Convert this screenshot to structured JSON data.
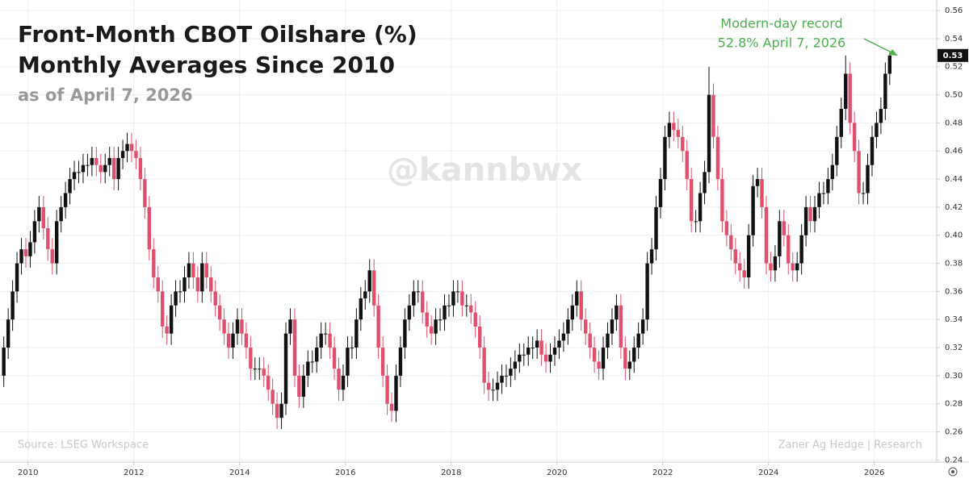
{
  "chart_data": {
    "type": "candlestick",
    "title_lines": [
      "Front-Month CBOT Oilshare (%)",
      "Monthly Averages Since 2010"
    ],
    "subtitle": "as of April 7, 2026",
    "watermark": "@kannbwx",
    "source": "Source: LSEG Workspace",
    "credit": "Zaner Ag Hedge | Research",
    "annotation": [
      "Modern-day record",
      "52.8% April 7, 2026"
    ],
    "last_label": "0.53",
    "up_color": "#111111",
    "down_color": "#e0506c",
    "annotation_color": "#4caf50",
    "xlim": [
      2009.47,
      2027.18
    ],
    "xticks": [
      2010,
      2012,
      2014,
      2016,
      2018,
      2020,
      2022,
      2024,
      2026
    ],
    "ylim": [
      0.2385,
      0.5675
    ],
    "yticks": [
      0.24,
      0.26,
      0.28,
      {
        "value": 0.3,
        "label": "0.30"
      },
      0.32,
      0.34,
      0.36,
      0.38,
      {
        "value": 0.4,
        "label": "0.40"
      },
      0.42,
      0.44,
      0.46,
      0.48,
      {
        "value": 0.5,
        "label": "0.50"
      },
      0.52,
      0.54,
      0.56
    ],
    "x": [
      "2009-07",
      "2009-08",
      "2009-09",
      "2009-10",
      "2009-11",
      "2009-12",
      "2010-01",
      "2010-02",
      "2010-03",
      "2010-04",
      "2010-05",
      "2010-06",
      "2010-07",
      "2010-08",
      "2010-09",
      "2010-10",
      "2010-11",
      "2010-12",
      "2011-01",
      "2011-02",
      "2011-03",
      "2011-04",
      "2011-05",
      "2011-06",
      "2011-07",
      "2011-08",
      "2011-09",
      "2011-10",
      "2011-11",
      "2011-12",
      "2012-01",
      "2012-02",
      "2012-03",
      "2012-04",
      "2012-05",
      "2012-06",
      "2012-07",
      "2012-08",
      "2012-09",
      "2012-10",
      "2012-11",
      "2012-12",
      "2013-01",
      "2013-02",
      "2013-03",
      "2013-04",
      "2013-05",
      "2013-06",
      "2013-07",
      "2013-08",
      "2013-09",
      "2013-10",
      "2013-11",
      "2013-12",
      "2014-01",
      "2014-02",
      "2014-03",
      "2014-04",
      "2014-05",
      "2014-06",
      "2014-07",
      "2014-08",
      "2014-09",
      "2014-10",
      "2014-11",
      "2014-12",
      "2015-01",
      "2015-02",
      "2015-03",
      "2015-04",
      "2015-05",
      "2015-06",
      "2015-07",
      "2015-08",
      "2015-09",
      "2015-10",
      "2015-11",
      "2015-12",
      "2016-01",
      "2016-02",
      "2016-03",
      "2016-04",
      "2016-05",
      "2016-06",
      "2016-07",
      "2016-08",
      "2016-09",
      "2016-10",
      "2016-11",
      "2016-12",
      "2017-01",
      "2017-02",
      "2017-03",
      "2017-04",
      "2017-05",
      "2017-06",
      "2017-07",
      "2017-08",
      "2017-09",
      "2017-10",
      "2017-11",
      "2017-12",
      "2018-01",
      "2018-02",
      "2018-03",
      "2018-04",
      "2018-05",
      "2018-06",
      "2018-07",
      "2018-08",
      "2018-09",
      "2018-10",
      "2018-11",
      "2018-12",
      "2019-01",
      "2019-02",
      "2019-03",
      "2019-04",
      "2019-05",
      "2019-06",
      "2019-07",
      "2019-08",
      "2019-09",
      "2019-10",
      "2019-11",
      "2019-12",
      "2020-01",
      "2020-02",
      "2020-03",
      "2020-04",
      "2020-05",
      "2020-06",
      "2020-07",
      "2020-08",
      "2020-09",
      "2020-10",
      "2020-11",
      "2020-12",
      "2021-01",
      "2021-02",
      "2021-03",
      "2021-04",
      "2021-05",
      "2021-06",
      "2021-07",
      "2021-08",
      "2021-09",
      "2021-10",
      "2021-11",
      "2021-12",
      "2022-01",
      "2022-02",
      "2022-03",
      "2022-04",
      "2022-05",
      "2022-06",
      "2022-07",
      "2022-08",
      "2022-09",
      "2022-10",
      "2022-11",
      "2022-12",
      "2023-01",
      "2023-02",
      "2023-03",
      "2023-04",
      "2023-05",
      "2023-06",
      "2023-07",
      "2023-08",
      "2023-09",
      "2023-10",
      "2023-11",
      "2023-12",
      "2024-01",
      "2024-02",
      "2024-03",
      "2024-04",
      "2024-05",
      "2024-06",
      "2024-07",
      "2024-08",
      "2024-09",
      "2024-10",
      "2024-11",
      "2024-12",
      "2025-01",
      "2025-02",
      "2025-03",
      "2025-04",
      "2025-05",
      "2025-06",
      "2025-07",
      "2025-08",
      "2025-09",
      "2025-10",
      "2025-11",
      "2025-12",
      "2026-01",
      "2026-02",
      "2026-03",
      "2026-04"
    ],
    "open": [
      0.3,
      0.32,
      0.34,
      0.36,
      0.38,
      0.39,
      0.385,
      0.395,
      0.41,
      0.42,
      0.405,
      0.39,
      0.38,
      0.41,
      0.42,
      0.43,
      0.44,
      0.445,
      0.445,
      0.45,
      0.45,
      0.455,
      0.45,
      0.445,
      0.45,
      0.455,
      0.44,
      0.455,
      0.46,
      0.465,
      0.46,
      0.455,
      0.44,
      0.42,
      0.39,
      0.37,
      0.36,
      0.335,
      0.33,
      0.35,
      0.36,
      0.36,
      0.37,
      0.38,
      0.37,
      0.36,
      0.38,
      0.37,
      0.36,
      0.35,
      0.34,
      0.33,
      0.32,
      0.33,
      0.34,
      0.33,
      0.32,
      0.305,
      0.305,
      0.305,
      0.3,
      0.29,
      0.28,
      0.27,
      0.28,
      0.33,
      0.34,
      0.3,
      0.285,
      0.3,
      0.31,
      0.31,
      0.32,
      0.33,
      0.33,
      0.32,
      0.305,
      0.29,
      0.3,
      0.32,
      0.32,
      0.34,
      0.355,
      0.36,
      0.375,
      0.35,
      0.32,
      0.3,
      0.28,
      0.275,
      0.3,
      0.32,
      0.34,
      0.35,
      0.36,
      0.36,
      0.345,
      0.335,
      0.33,
      0.34,
      0.34,
      0.35,
      0.35,
      0.36,
      0.36,
      0.35,
      0.35,
      0.345,
      0.335,
      0.32,
      0.295,
      0.29,
      0.29,
      0.295,
      0.3,
      0.3,
      0.305,
      0.31,
      0.315,
      0.315,
      0.32,
      0.32,
      0.325,
      0.315,
      0.31,
      0.315,
      0.32,
      0.325,
      0.33,
      0.34,
      0.35,
      0.36,
      0.34,
      0.33,
      0.32,
      0.31,
      0.305,
      0.32,
      0.33,
      0.34,
      0.35,
      0.32,
      0.305,
      0.31,
      0.32,
      0.33,
      0.34,
      0.38,
      0.39,
      0.42,
      0.44,
      0.47,
      0.48,
      0.475,
      0.47,
      0.46,
      0.44,
      0.41,
      0.41,
      0.43,
      0.445,
      0.5,
      0.47,
      0.44,
      0.41,
      0.4,
      0.39,
      0.38,
      0.375,
      0.37,
      0.4,
      0.435,
      0.44,
      0.42,
      0.38,
      0.375,
      0.385,
      0.41,
      0.4,
      0.38,
      0.375,
      0.38,
      0.4,
      0.42,
      0.41,
      0.42,
      0.43,
      0.43,
      0.44,
      0.45,
      0.47,
      0.49,
      0.515,
      0.48,
      0.46,
      0.43,
      0.43,
      0.45,
      0.47,
      0.48,
      0.49,
      0.515
    ],
    "high": [
      0.328,
      0.348,
      0.368,
      0.388,
      0.398,
      0.398,
      0.403,
      0.418,
      0.428,
      0.428,
      0.413,
      0.398,
      0.418,
      0.428,
      0.438,
      0.448,
      0.453,
      0.453,
      0.458,
      0.458,
      0.463,
      0.463,
      0.458,
      0.458,
      0.463,
      0.463,
      0.463,
      0.468,
      0.473,
      0.473,
      0.468,
      0.463,
      0.448,
      0.428,
      0.398,
      0.378,
      0.368,
      0.343,
      0.358,
      0.368,
      0.368,
      0.378,
      0.388,
      0.388,
      0.378,
      0.388,
      0.388,
      0.378,
      0.368,
      0.358,
      0.348,
      0.338,
      0.338,
      0.348,
      0.348,
      0.338,
      0.328,
      0.313,
      0.313,
      0.313,
      0.308,
      0.298,
      0.288,
      0.288,
      0.338,
      0.348,
      0.348,
      0.308,
      0.308,
      0.318,
      0.318,
      0.328,
      0.338,
      0.338,
      0.338,
      0.328,
      0.313,
      0.308,
      0.328,
      0.328,
      0.348,
      0.363,
      0.368,
      0.383,
      0.383,
      0.358,
      0.328,
      0.308,
      0.288,
      0.308,
      0.328,
      0.348,
      0.358,
      0.368,
      0.368,
      0.368,
      0.353,
      0.343,
      0.348,
      0.348,
      0.358,
      0.358,
      0.368,
      0.368,
      0.368,
      0.358,
      0.358,
      0.353,
      0.343,
      0.328,
      0.303,
      0.298,
      0.303,
      0.308,
      0.308,
      0.313,
      0.318,
      0.323,
      0.323,
      0.328,
      0.328,
      0.333,
      0.333,
      0.323,
      0.323,
      0.328,
      0.333,
      0.338,
      0.348,
      0.358,
      0.368,
      0.368,
      0.348,
      0.338,
      0.328,
      0.318,
      0.328,
      0.338,
      0.348,
      0.358,
      0.358,
      0.328,
      0.318,
      0.328,
      0.338,
      0.348,
      0.388,
      0.398,
      0.428,
      0.448,
      0.478,
      0.488,
      0.488,
      0.483,
      0.478,
      0.468,
      0.448,
      0.418,
      0.438,
      0.453,
      0.52,
      0.508,
      0.478,
      0.448,
      0.418,
      0.408,
      0.398,
      0.388,
      0.383,
      0.408,
      0.443,
      0.448,
      0.448,
      0.428,
      0.388,
      0.393,
      0.418,
      0.418,
      0.408,
      0.388,
      0.388,
      0.408,
      0.428,
      0.428,
      0.428,
      0.438,
      0.438,
      0.448,
      0.458,
      0.478,
      0.498,
      0.528,
      0.523,
      0.488,
      0.468,
      0.438,
      0.458,
      0.478,
      0.488,
      0.498,
      0.523,
      0.53
    ],
    "low": [
      0.292,
      0.312,
      0.332,
      0.352,
      0.372,
      0.377,
      0.377,
      0.387,
      0.402,
      0.397,
      0.382,
      0.372,
      0.372,
      0.402,
      0.412,
      0.422,
      0.432,
      0.437,
      0.437,
      0.442,
      0.442,
      0.442,
      0.437,
      0.437,
      0.442,
      0.432,
      0.432,
      0.447,
      0.452,
      0.452,
      0.447,
      0.432,
      0.412,
      0.382,
      0.362,
      0.352,
      0.327,
      0.322,
      0.322,
      0.342,
      0.352,
      0.352,
      0.362,
      0.362,
      0.352,
      0.352,
      0.362,
      0.352,
      0.342,
      0.332,
      0.322,
      0.312,
      0.312,
      0.322,
      0.322,
      0.312,
      0.297,
      0.297,
      0.297,
      0.292,
      0.282,
      0.272,
      0.262,
      0.262,
      0.272,
      0.322,
      0.292,
      0.277,
      0.277,
      0.292,
      0.302,
      0.302,
      0.312,
      0.322,
      0.312,
      0.297,
      0.282,
      0.282,
      0.292,
      0.312,
      0.312,
      0.332,
      0.347,
      0.352,
      0.342,
      0.312,
      0.292,
      0.272,
      0.267,
      0.267,
      0.292,
      0.312,
      0.332,
      0.342,
      0.352,
      0.337,
      0.327,
      0.322,
      0.322,
      0.332,
      0.332,
      0.342,
      0.342,
      0.352,
      0.342,
      0.342,
      0.337,
      0.327,
      0.312,
      0.287,
      0.282,
      0.282,
      0.282,
      0.287,
      0.292,
      0.292,
      0.297,
      0.302,
      0.307,
      0.307,
      0.312,
      0.312,
      0.307,
      0.302,
      0.302,
      0.307,
      0.312,
      0.317,
      0.322,
      0.332,
      0.342,
      0.332,
      0.322,
      0.312,
      0.302,
      0.297,
      0.297,
      0.312,
      0.322,
      0.332,
      0.312,
      0.297,
      0.297,
      0.302,
      0.312,
      0.322,
      0.332,
      0.372,
      0.382,
      0.412,
      0.432,
      0.462,
      0.467,
      0.462,
      0.452,
      0.432,
      0.402,
      0.402,
      0.402,
      0.422,
      0.437,
      0.462,
      0.432,
      0.402,
      0.392,
      0.382,
      0.372,
      0.367,
      0.362,
      0.362,
      0.392,
      0.427,
      0.412,
      0.372,
      0.367,
      0.367,
      0.377,
      0.392,
      0.372,
      0.367,
      0.367,
      0.372,
      0.392,
      0.402,
      0.402,
      0.412,
      0.422,
      0.422,
      0.432,
      0.442,
      0.462,
      0.482,
      0.472,
      0.452,
      0.422,
      0.422,
      0.422,
      0.442,
      0.462,
      0.472,
      0.482,
      0.507
    ],
    "close": [
      0.32,
      0.34,
      0.36,
      0.38,
      0.39,
      0.385,
      0.395,
      0.41,
      0.42,
      0.405,
      0.39,
      0.38,
      0.41,
      0.42,
      0.43,
      0.44,
      0.445,
      0.445,
      0.45,
      0.45,
      0.455,
      0.45,
      0.445,
      0.45,
      0.455,
      0.44,
      0.455,
      0.46,
      0.465,
      0.46,
      0.455,
      0.44,
      0.42,
      0.39,
      0.37,
      0.36,
      0.335,
      0.33,
      0.35,
      0.36,
      0.36,
      0.37,
      0.38,
      0.37,
      0.36,
      0.38,
      0.37,
      0.36,
      0.35,
      0.34,
      0.33,
      0.32,
      0.33,
      0.34,
      0.33,
      0.32,
      0.305,
      0.305,
      0.305,
      0.3,
      0.29,
      0.28,
      0.27,
      0.28,
      0.33,
      0.34,
      0.3,
      0.285,
      0.3,
      0.31,
      0.31,
      0.32,
      0.33,
      0.33,
      0.32,
      0.305,
      0.29,
      0.3,
      0.32,
      0.32,
      0.34,
      0.355,
      0.36,
      0.375,
      0.35,
      0.32,
      0.3,
      0.28,
      0.275,
      0.3,
      0.32,
      0.34,
      0.35,
      0.36,
      0.36,
      0.345,
      0.335,
      0.33,
      0.34,
      0.34,
      0.35,
      0.35,
      0.36,
      0.36,
      0.35,
      0.35,
      0.345,
      0.335,
      0.32,
      0.295,
      0.29,
      0.29,
      0.295,
      0.3,
      0.3,
      0.305,
      0.31,
      0.315,
      0.315,
      0.32,
      0.32,
      0.325,
      0.315,
      0.31,
      0.315,
      0.32,
      0.325,
      0.33,
      0.34,
      0.35,
      0.36,
      0.34,
      0.33,
      0.32,
      0.31,
      0.305,
      0.32,
      0.33,
      0.34,
      0.35,
      0.32,
      0.305,
      0.31,
      0.32,
      0.33,
      0.34,
      0.38,
      0.39,
      0.42,
      0.44,
      0.47,
      0.48,
      0.475,
      0.47,
      0.46,
      0.44,
      0.41,
      0.41,
      0.43,
      0.445,
      0.5,
      0.47,
      0.44,
      0.41,
      0.4,
      0.39,
      0.38,
      0.375,
      0.37,
      0.4,
      0.435,
      0.44,
      0.42,
      0.38,
      0.375,
      0.385,
      0.41,
      0.4,
      0.38,
      0.375,
      0.38,
      0.4,
      0.42,
      0.41,
      0.42,
      0.43,
      0.43,
      0.44,
      0.45,
      0.47,
      0.49,
      0.515,
      0.48,
      0.46,
      0.43,
      0.43,
      0.45,
      0.47,
      0.48,
      0.49,
      0.515,
      0.528
    ],
    "grid": true
  }
}
